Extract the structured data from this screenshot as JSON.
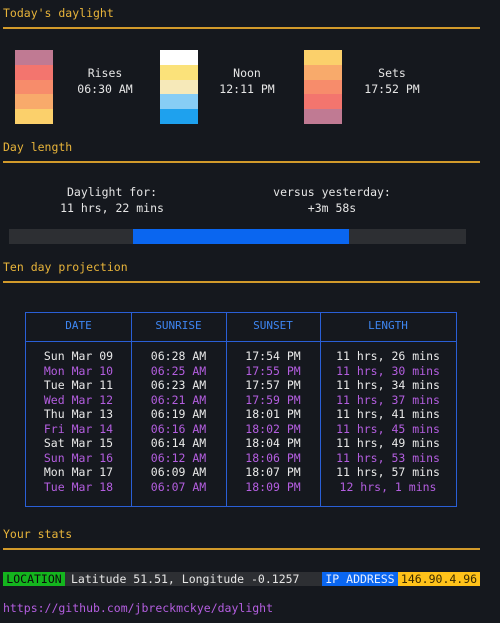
{
  "sections": {
    "today": "Today's daylight",
    "day_length": "Day length",
    "projection": "Ten day projection",
    "stats": "Your stats"
  },
  "sun": {
    "rises": {
      "label": "Rises",
      "time": "06:30 AM",
      "colors": [
        "#c07a93",
        "#f3756e",
        "#f78c6b",
        "#f8aa6b",
        "#fbd06b"
      ]
    },
    "noon": {
      "label": "Noon",
      "time": "12:11 PM",
      "colors": [
        "#ffffff",
        "#fbe27a",
        "#f6e9b9",
        "#87cdf5",
        "#1ea1ee"
      ]
    },
    "sets": {
      "label": "Sets",
      "time": "17:52 PM",
      "colors": [
        "#fbd06b",
        "#f8aa6b",
        "#f78c6b",
        "#f3756e",
        "#c07a93"
      ]
    }
  },
  "day_length": {
    "daylight_label": "Daylight for:",
    "daylight_value": "11 hrs, 22 mins",
    "versus_label": "versus yesterday:",
    "versus_value": "+3m 58s",
    "sunrise_fraction": 0.2708,
    "sunset_fraction": 0.7444
  },
  "projection": {
    "headers": [
      "DATE",
      "SUNRISE",
      "SUNSET",
      "LENGTH"
    ],
    "rows": [
      [
        "Sun Mar 09",
        "06:28 AM",
        "17:54 PM",
        "11 hrs, 26 mins"
      ],
      [
        "Mon Mar 10",
        "06:25 AM",
        "17:55 PM",
        "11 hrs, 30 mins"
      ],
      [
        "Tue Mar 11",
        "06:23 AM",
        "17:57 PM",
        "11 hrs, 34 mins"
      ],
      [
        "Wed Mar 12",
        "06:21 AM",
        "17:59 PM",
        "11 hrs, 37 mins"
      ],
      [
        "Thu Mar 13",
        "06:19 AM",
        "18:01 PM",
        "11 hrs, 41 mins"
      ],
      [
        "Fri Mar 14",
        "06:16 AM",
        "18:02 PM",
        "11 hrs, 45 mins"
      ],
      [
        "Sat Mar 15",
        "06:14 AM",
        "18:04 PM",
        "11 hrs, 49 mins"
      ],
      [
        "Sun Mar 16",
        "06:12 AM",
        "18:06 PM",
        "11 hrs, 53 mins"
      ],
      [
        "Mon Mar 17",
        "06:09 AM",
        "18:07 PM",
        "11 hrs, 57 mins"
      ],
      [
        "Tue Mar 18",
        "06:07 AM",
        "18:09 PM",
        "12 hrs, 1 mins"
      ]
    ]
  },
  "stats": {
    "location_tag": "LOCATION",
    "location_value": "Latitude 51.51, Longitude -0.1257",
    "ip_tag": "IP ADDRESS",
    "ip_value": "146.90.4.96"
  },
  "link": "https://github.com/jbreckmckye/daylight",
  "colors": {
    "accent": "#e8b43a",
    "rule": "#d29a2b",
    "progress": "#0a66f0",
    "table_border": "#2a5fd6",
    "table_header": "#3e86f2",
    "alt_row": "#b45ee0",
    "location_tag": "#14b51e",
    "ip_tag": "#0a66f0",
    "ip_value_bg": "#ffc21a"
  }
}
